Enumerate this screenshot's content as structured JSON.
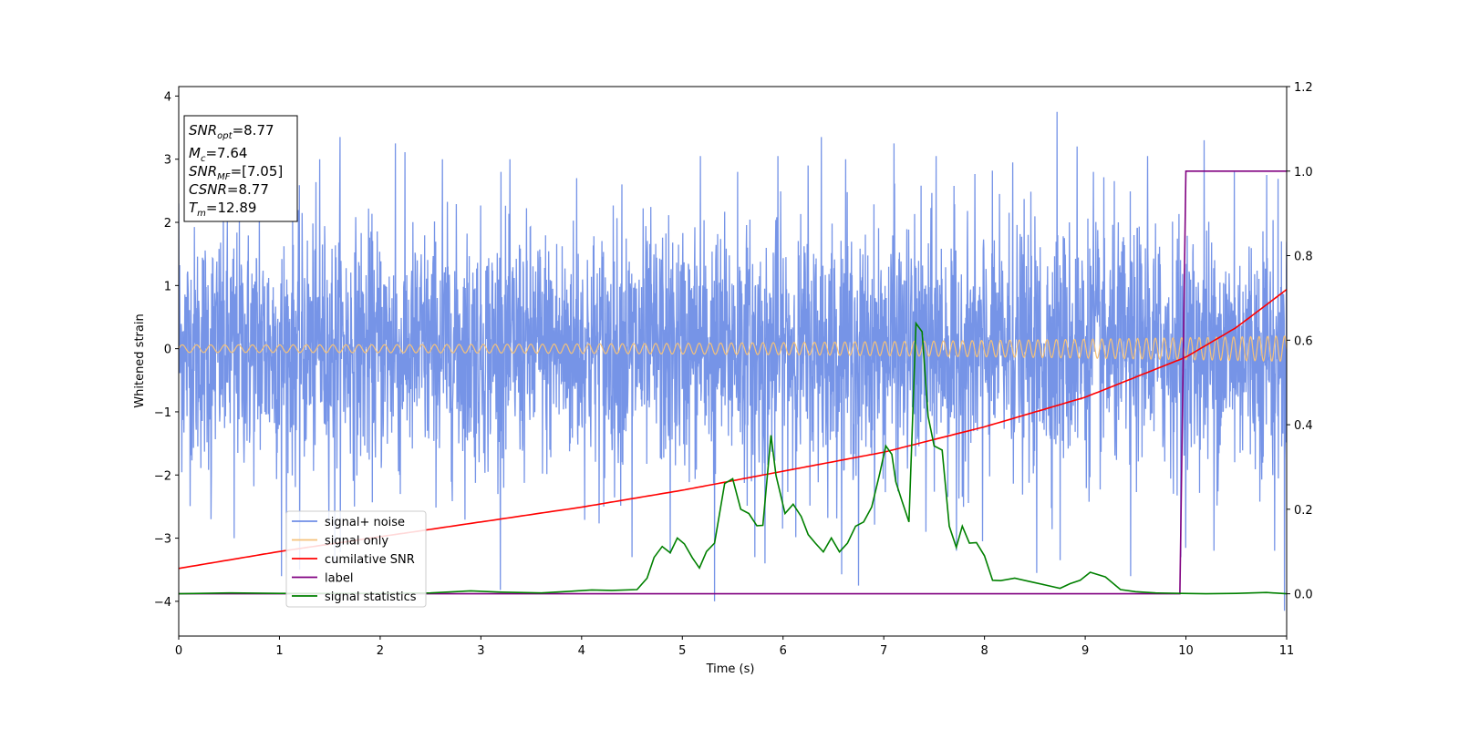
{
  "chart_data": {
    "type": "line",
    "title": "",
    "xlabel": "Time (s)",
    "ylabel": "Whitened strain",
    "xlim": [
      0,
      11
    ],
    "ylim": [
      -4.55,
      4.15
    ],
    "y2lim": [
      -0.1,
      1.2
    ],
    "xticks": [
      "0",
      "1",
      "2",
      "3",
      "4",
      "5",
      "6",
      "7",
      "8",
      "9",
      "10",
      "11"
    ],
    "yticks": [
      "−4",
      "−3",
      "−2",
      "−1",
      "0",
      "1",
      "2",
      "3",
      "4"
    ],
    "y2ticks": [
      "0.0",
      "0.2",
      "0.4",
      "0.6",
      "0.8",
      "1.0",
      "1.2"
    ],
    "grid": false,
    "legend_position": "lower-left",
    "info_box": {
      "snr_opt": {
        "symbol": "SNR",
        "sub": "opt",
        "value": "=8.77"
      },
      "mc": {
        "symbol": "M",
        "sub": "c",
        "value": "=7.64"
      },
      "snr_mf": {
        "symbol": "SNR",
        "sub": "MF",
        "value": "=[7.05]"
      },
      "csnr": {
        "symbol": "CSNR",
        "sub": "",
        "value": "=8.77"
      },
      "tm": {
        "symbol": "T",
        "sub": "m",
        "value": "=12.89"
      }
    },
    "series": [
      {
        "name": "signal+ noise",
        "axis": "left",
        "color": "#6f8ee6",
        "kind": "noise",
        "std": 0.95,
        "peaks": [
          [
            0.0,
            2.3
          ],
          [
            0.32,
            -2.7
          ],
          [
            0.55,
            -3.0
          ],
          [
            0.8,
            2.4
          ],
          [
            1.02,
            -3.6
          ],
          [
            1.4,
            3.0
          ],
          [
            1.6,
            3.35
          ],
          [
            1.2,
            -3.5
          ],
          [
            1.55,
            -3.4
          ],
          [
            2.2,
            -2.3
          ],
          [
            2.15,
            3.25
          ],
          [
            2.62,
            3.0
          ],
          [
            3.2,
            2.8
          ],
          [
            3.95,
            2.7
          ],
          [
            4.22,
            -2.5
          ],
          [
            4.4,
            2.6
          ],
          [
            4.5,
            -3.3
          ],
          [
            4.88,
            -3.25
          ],
          [
            5.18,
            3.05
          ],
          [
            5.32,
            -4.0
          ],
          [
            5.55,
            2.8
          ],
          [
            5.72,
            -3.3
          ],
          [
            5.82,
            -3.4
          ],
          [
            5.95,
            3.05
          ],
          [
            6.25,
            2.9
          ],
          [
            6.38,
            3.35
          ],
          [
            6.75,
            -3.75
          ],
          [
            6.62,
            3.0
          ],
          [
            7.1,
            3.25
          ],
          [
            7.42,
            -2.9
          ],
          [
            7.52,
            3.05
          ],
          [
            7.72,
            -3.2
          ],
          [
            7.98,
            -3.05
          ],
          [
            8.28,
            2.95
          ],
          [
            8.52,
            -3.55
          ],
          [
            8.72,
            3.75
          ],
          [
            8.75,
            -3.35
          ],
          [
            8.92,
            3.2
          ],
          [
            9.08,
            2.8
          ],
          [
            9.45,
            -3.6
          ],
          [
            9.62,
            3.05
          ],
          [
            9.95,
            -3.3
          ],
          [
            10.18,
            3.3
          ],
          [
            10.28,
            -3.2
          ],
          [
            10.48,
            2.8
          ],
          [
            10.8,
            2.75
          ],
          [
            10.88,
            -3.2
          ],
          [
            10.98,
            -4.15
          ]
        ]
      },
      {
        "name": "signal only",
        "axis": "left",
        "color": "#f5c27a",
        "kind": "chirp",
        "amp_start": 0.06,
        "amp_end": 0.2,
        "cycles_per_second_start": 7,
        "cycles_per_second_end": 12
      },
      {
        "name": "cumilative SNR",
        "axis": "right",
        "color": "#ff0000",
        "x": [
          0,
          1,
          2,
          3,
          4,
          5,
          6,
          7,
          8,
          9,
          10,
          10.5,
          11
        ],
        "y": [
          0.06,
          0.1,
          0.135,
          0.17,
          0.205,
          0.245,
          0.29,
          0.335,
          0.395,
          0.465,
          0.56,
          0.63,
          0.72
        ]
      },
      {
        "name": "label",
        "axis": "right",
        "color": "#800080",
        "x": [
          0,
          9.94,
          10.0,
          11
        ],
        "y": [
          0,
          0,
          1,
          1
        ]
      },
      {
        "name": "signal statistics",
        "axis": "right",
        "color": "#008000",
        "x": [
          0,
          0.5,
          1,
          1.5,
          2,
          2.5,
          2.9,
          3.2,
          3.6,
          3.9,
          4.1,
          4.3,
          4.55,
          4.65,
          4.72,
          4.8,
          4.88,
          4.95,
          5.02,
          5.1,
          5.17,
          5.24,
          5.32,
          5.42,
          5.5,
          5.58,
          5.66,
          5.74,
          5.8,
          5.88,
          5.93,
          5.97,
          6.02,
          6.1,
          6.18,
          6.25,
          6.32,
          6.4,
          6.48,
          6.56,
          6.64,
          6.72,
          6.8,
          6.88,
          6.96,
          7.02,
          7.08,
          7.12,
          7.18,
          7.25,
          7.32,
          7.38,
          7.44,
          7.5,
          7.58,
          7.65,
          7.72,
          7.78,
          7.85,
          7.92,
          8.0,
          8.08,
          8.16,
          8.3,
          8.45,
          8.6,
          8.75,
          8.85,
          8.95,
          9.05,
          9.2,
          9.35,
          9.5,
          9.7,
          9.95,
          10.2,
          10.5,
          10.8,
          11.0
        ],
        "y": [
          0.0,
          0.002,
          0.001,
          0.001,
          0.001,
          0.002,
          0.007,
          0.004,
          0.002,
          0.006,
          0.009,
          0.008,
          0.01,
          0.037,
          0.086,
          0.112,
          0.097,
          0.132,
          0.118,
          0.085,
          0.061,
          0.1,
          0.12,
          0.261,
          0.272,
          0.2,
          0.19,
          0.161,
          0.162,
          0.375,
          0.28,
          0.24,
          0.19,
          0.212,
          0.183,
          0.14,
          0.12,
          0.099,
          0.132,
          0.099,
          0.12,
          0.16,
          0.17,
          0.205,
          0.285,
          0.35,
          0.33,
          0.265,
          0.22,
          0.17,
          0.64,
          0.62,
          0.42,
          0.35,
          0.34,
          0.16,
          0.11,
          0.16,
          0.12,
          0.121,
          0.09,
          0.032,
          0.031,
          0.037,
          0.029,
          0.021,
          0.013,
          0.024,
          0.032,
          0.051,
          0.04,
          0.01,
          0.005,
          0.002,
          0.001,
          0.0,
          0.001,
          0.003,
          0.0
        ]
      }
    ]
  }
}
